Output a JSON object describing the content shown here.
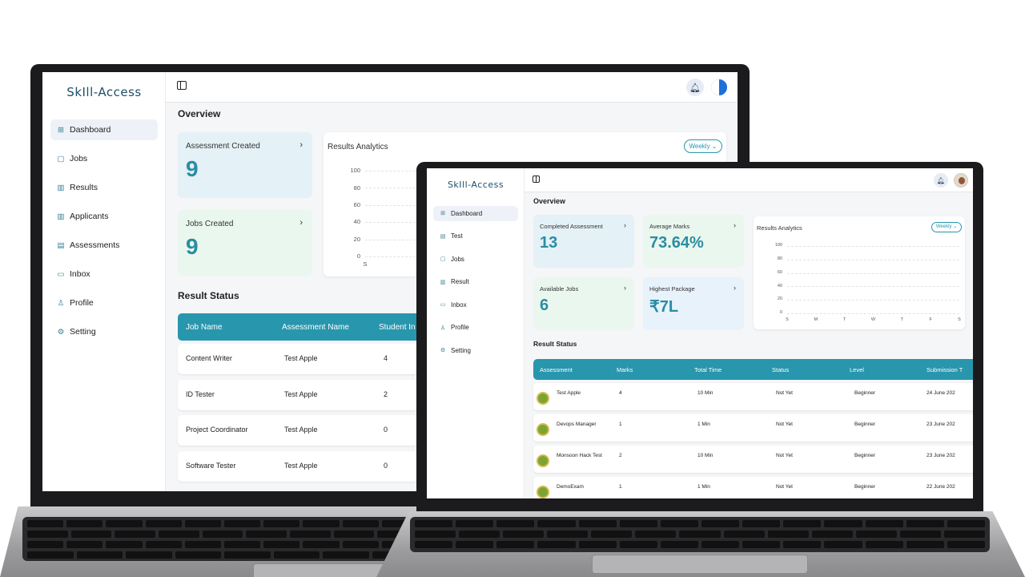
{
  "brand": {
    "name": "SkIll-Access"
  },
  "laptop1": {
    "nav": [
      {
        "icon": "dashboard-icon",
        "glyph": "⊞",
        "label": "Dashboard",
        "active": true
      },
      {
        "icon": "briefcase-icon",
        "glyph": "▢",
        "label": "Jobs"
      },
      {
        "icon": "chart-icon",
        "glyph": "▥",
        "label": "Results"
      },
      {
        "icon": "chart-icon",
        "glyph": "▥",
        "label": "Applicants"
      },
      {
        "icon": "clipboard-icon",
        "glyph": "▤",
        "label": "Assessments"
      },
      {
        "icon": "chat-icon",
        "glyph": "▭",
        "label": "Inbox"
      },
      {
        "icon": "user-icon",
        "glyph": "♙",
        "label": "Profile"
      },
      {
        "icon": "gear-icon",
        "glyph": "⚙",
        "label": "Setting"
      }
    ],
    "overview_title": "Overview",
    "cards": [
      {
        "title": "Assessment Created",
        "value": "9"
      },
      {
        "title": "Jobs Created",
        "value": "9"
      }
    ],
    "analytics": {
      "title": "Results Analytics",
      "filter": "Weekly",
      "yticks": [
        "100",
        "80",
        "60",
        "40",
        "20",
        "0"
      ],
      "first_x": "S"
    },
    "result_status_title": "Result Status",
    "table": {
      "columns": [
        "Job Name",
        "Assessment Name",
        "Student In"
      ],
      "rows": [
        [
          "Content Writer",
          "Test Apple",
          "4"
        ],
        [
          "ID Tester",
          "Test Apple",
          "2"
        ],
        [
          "Project Coordinator",
          "Test Apple",
          "0"
        ],
        [
          "Software Tester",
          "Test Apple",
          "0"
        ]
      ]
    }
  },
  "laptop2": {
    "nav": [
      {
        "icon": "dashboard-icon",
        "glyph": "⊞",
        "label": "Dashboard",
        "active": true
      },
      {
        "icon": "document-icon",
        "glyph": "▤",
        "label": "Test"
      },
      {
        "icon": "briefcase-icon",
        "glyph": "▢",
        "label": "Jobs"
      },
      {
        "icon": "chart-icon",
        "glyph": "▥",
        "label": "Result"
      },
      {
        "icon": "chat-icon",
        "glyph": "▭",
        "label": "Inbox"
      },
      {
        "icon": "user-icon",
        "glyph": "♙",
        "label": "Profile"
      },
      {
        "icon": "gear-icon",
        "glyph": "⚙",
        "label": "Setting"
      }
    ],
    "overview_title": "Overview",
    "cards": [
      {
        "title": "Completed Assessment",
        "value": "13"
      },
      {
        "title": "Average Marks",
        "value": "73.64%"
      },
      {
        "title": "Available Jobs",
        "value": "6"
      },
      {
        "title": "Highest Package",
        "value": "₹7L"
      }
    ],
    "analytics": {
      "title": "Results Analytics",
      "filter": "Weekly",
      "yticks": [
        "100",
        "80",
        "60",
        "40",
        "20",
        "0"
      ],
      "xticks": [
        "S",
        "M",
        "T",
        "W",
        "T",
        "F",
        "S"
      ]
    },
    "result_status_title": "Result Status",
    "table": {
      "columns": [
        "Assessment",
        "Marks",
        "Total Time",
        "Status",
        "Level",
        "Submission T"
      ],
      "rows": [
        [
          "Test Apple",
          "4",
          "10 Min",
          "Not Yet",
          "Beginner",
          "24 June 202"
        ],
        [
          "Devops Manager",
          "1",
          "1 Min",
          "Not Yet",
          "Beginner",
          "23 June 202"
        ],
        [
          "Monsoon Hack Test",
          "2",
          "10 Min",
          "Not Yet",
          "Beginner",
          "23 June 202"
        ],
        [
          "DemoExam",
          "1",
          "1 Min",
          "Not Yet",
          "Beginner",
          "22 June 202"
        ]
      ]
    }
  }
}
